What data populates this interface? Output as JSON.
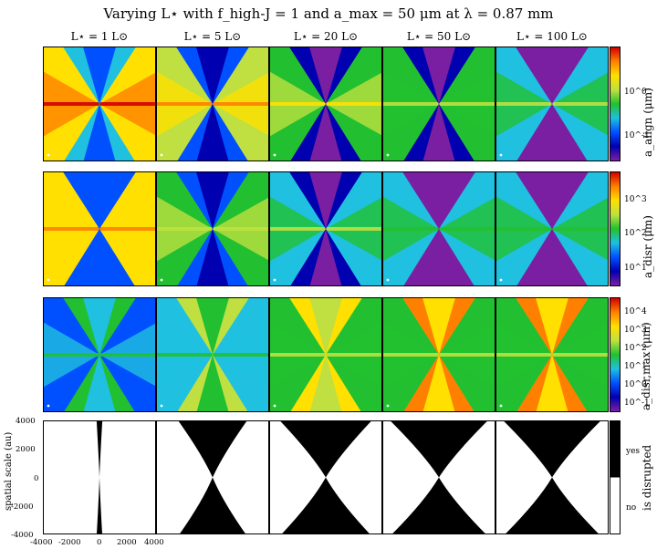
{
  "title": "Varying L⋆ with f_high-J = 1 and a_max = 50 μm at λ = 0.87 mm",
  "columns": [
    "L⋆ = 1 L⊙",
    "L⋆ = 5 L⊙",
    "L⋆ = 20 L⊙",
    "L⋆ = 50 L⊙",
    "L⋆ = 100 L⊙"
  ],
  "colors": {
    "jet": [
      "#7a1fa2",
      "#0000b0",
      "#0050ff",
      "#1fc0e0",
      "#22c030",
      "#bfe040",
      "#ffe000",
      "#ff8000",
      "#d00000"
    ],
    "disrupted": "#000000",
    "not_disrupted": "#ffffff"
  },
  "chart_data": [
    {
      "type": "heatmap",
      "name": "a_align",
      "colorbar_label": "a_align (μm)",
      "colorbar_ticks": [
        "10^0",
        "10^-1"
      ],
      "panel_levels": [
        0.8,
        0.66,
        0.55,
        0.45,
        0.4
      ],
      "cone_levels": [
        0.35,
        0.22,
        0.14,
        0.08,
        0.05
      ]
    },
    {
      "type": "heatmap",
      "name": "a_disr",
      "colorbar_label": "a_disr (μm)",
      "colorbar_ticks": [
        "10^3",
        "10^2",
        "10^1"
      ],
      "panel_levels": [
        0.7,
        0.5,
        0.42,
        0.38,
        0.36
      ],
      "cone_levels": [
        0.3,
        0.2,
        0.1,
        0.05,
        0.02
      ]
    },
    {
      "type": "heatmap",
      "name": "a_disr,max",
      "colorbar_label": "a_disr,max (μm)",
      "colorbar_ticks": [
        "10^4",
        "10^3",
        "10^2",
        "10^1",
        "10^0",
        "10^-1"
      ],
      "panel_levels": [
        0.3,
        0.35,
        0.45,
        0.45,
        0.45
      ],
      "cone_levels": [
        0.5,
        0.6,
        0.75,
        0.85,
        0.88
      ]
    },
    {
      "type": "heatmap",
      "name": "is_disrupted",
      "colorbar_label": "is disrupted",
      "colorbar_ticks": [
        "yes",
        "no"
      ],
      "cone_widths": [
        0.05,
        0.6,
        0.8,
        0.85,
        0.85
      ],
      "ylabel": "spatial scale (au)",
      "xticks": [
        -4000,
        -2000,
        0,
        2000,
        4000
      ],
      "yticks": [
        4000,
        2000,
        0,
        -2000,
        -4000
      ],
      "xlim": [
        -4000,
        4000
      ],
      "ylim": [
        -4000,
        4000
      ]
    }
  ]
}
